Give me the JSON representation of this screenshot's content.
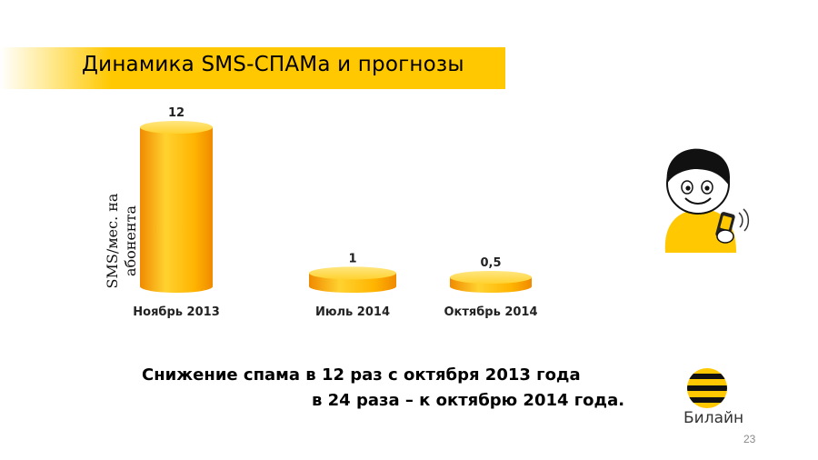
{
  "slide": {
    "title": "Динамика SMS-СПАМа и прогнозы",
    "summary_line1": "Снижение спама в 12 раз с октября 2013 года",
    "summary_line2": "в 24 раза – к октябрю 2014 года.",
    "page_number": "23",
    "logo_text": "Билайн",
    "accent_color": "#ffc800"
  },
  "chart_data": {
    "type": "bar",
    "categories": [
      "Ноябрь 2013",
      "Июль 2014",
      "Октябрь 2014"
    ],
    "values": [
      12,
      1,
      0.5
    ],
    "value_labels": [
      "12",
      "1",
      "0,5"
    ],
    "ylabel": "SMS/мес. на абонента",
    "xlabel": "",
    "ylim": [
      0,
      12
    ],
    "grid": false,
    "colors": {
      "bar": "#ffb400",
      "bar_light": "#ffd230",
      "bar_dark": "#f08a00"
    }
  }
}
